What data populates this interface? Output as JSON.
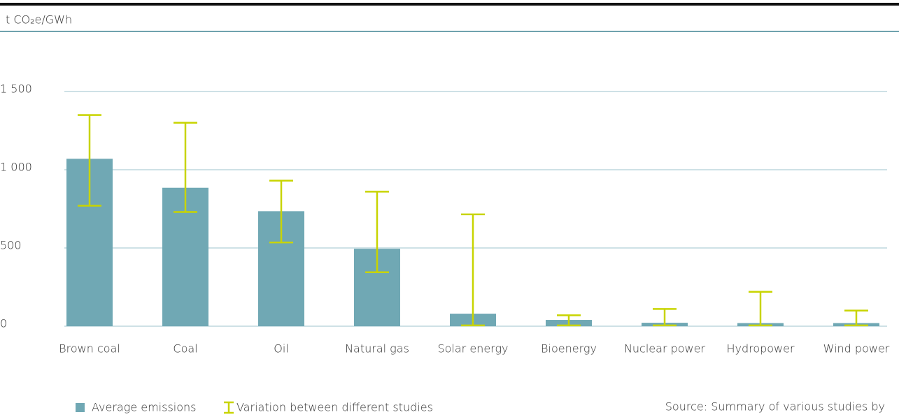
{
  "chart_data": {
    "type": "bar",
    "y_label": "t CO₂e/GWh",
    "categories": [
      "Brown coal",
      "Coal",
      "Oil",
      "Natural gas",
      "Solar energy",
      "Bioenergy",
      "Nuclear power",
      "Hydropower",
      "Wind power"
    ],
    "series": [
      {
        "name": "Average emissions",
        "color": "#70a8b4",
        "values": [
          1070,
          885,
          735,
          495,
          80,
          40,
          22,
          20,
          20
        ]
      }
    ],
    "ranges": {
      "name": "Variation between different studies",
      "color": "#c8d400",
      "low": [
        770,
        730,
        535,
        345,
        5,
        5,
        5,
        5,
        5
      ],
      "high": [
        1350,
        1300,
        930,
        860,
        715,
        70,
        110,
        220,
        100
      ]
    },
    "ylim": [
      0,
      1500
    ],
    "yticks": [
      0,
      500,
      {
        "value": 1000,
        "label": "1 000"
      },
      {
        "value": 1500,
        "label": "1 500"
      }
    ],
    "grid": true,
    "source": "Source: Summary of various studies by"
  }
}
